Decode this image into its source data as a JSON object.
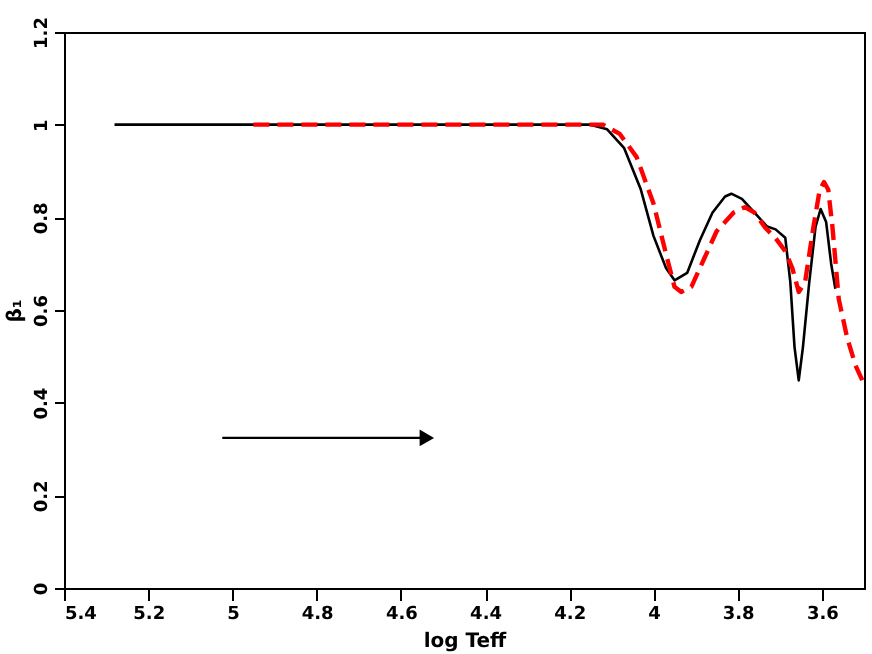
{
  "chart_data": {
    "type": "line",
    "xlabel": "log Teff",
    "ylabel": "β₁",
    "xlim": [
      5.4,
      3.5
    ],
    "xticks": [
      5.4,
      5.2,
      5,
      4.8,
      4.6,
      4.4,
      4.2,
      4,
      3.8,
      3.6
    ],
    "ylim": [
      0,
      1.2
    ],
    "yticks": [
      0,
      0.2,
      0.4,
      0.6,
      0.8,
      1,
      1.2
    ],
    "grid": false,
    "legend": false,
    "marker": "none",
    "series": [
      {
        "color": "#000000",
        "line_style": "solid",
        "x": [
          5.28,
          5.0,
          4.6,
          4.3,
          4.15,
          4.11,
          4.07,
          4.03,
          4.0,
          3.97,
          3.95,
          3.92,
          3.89,
          3.86,
          3.83,
          3.815,
          3.79,
          3.76,
          3.73,
          3.71,
          3.687,
          3.675,
          3.665,
          3.655,
          3.645,
          3.63,
          3.615,
          3.603,
          3.59,
          3.578,
          3.568
        ],
        "values": [
          1.0,
          1.0,
          1.0,
          1.0,
          1.0,
          0.99,
          0.95,
          0.86,
          0.76,
          0.69,
          0.664,
          0.68,
          0.75,
          0.81,
          0.845,
          0.851,
          0.84,
          0.81,
          0.78,
          0.774,
          0.756,
          0.66,
          0.52,
          0.448,
          0.52,
          0.66,
          0.78,
          0.818,
          0.79,
          0.7,
          0.646
        ]
      },
      {
        "color": "#ff0000",
        "line_style": "dashed",
        "x": [
          4.95,
          4.6,
          4.3,
          4.12,
          4.08,
          4.04,
          4.0,
          3.97,
          3.95,
          3.934,
          3.91,
          3.88,
          3.85,
          3.81,
          3.783,
          3.76,
          3.735,
          3.71,
          3.687,
          3.67,
          3.655,
          3.64,
          3.62,
          3.605,
          3.595,
          3.585,
          3.575,
          3.56,
          3.54,
          3.52,
          3.504
        ],
        "values": [
          1.0,
          1.0,
          1.0,
          1.0,
          0.98,
          0.93,
          0.83,
          0.72,
          0.65,
          0.639,
          0.65,
          0.71,
          0.77,
          0.81,
          0.822,
          0.81,
          0.778,
          0.755,
          0.727,
          0.69,
          0.639,
          0.66,
          0.78,
          0.86,
          0.876,
          0.86,
          0.78,
          0.624,
          0.54,
          0.48,
          0.448
        ]
      }
    ]
  }
}
